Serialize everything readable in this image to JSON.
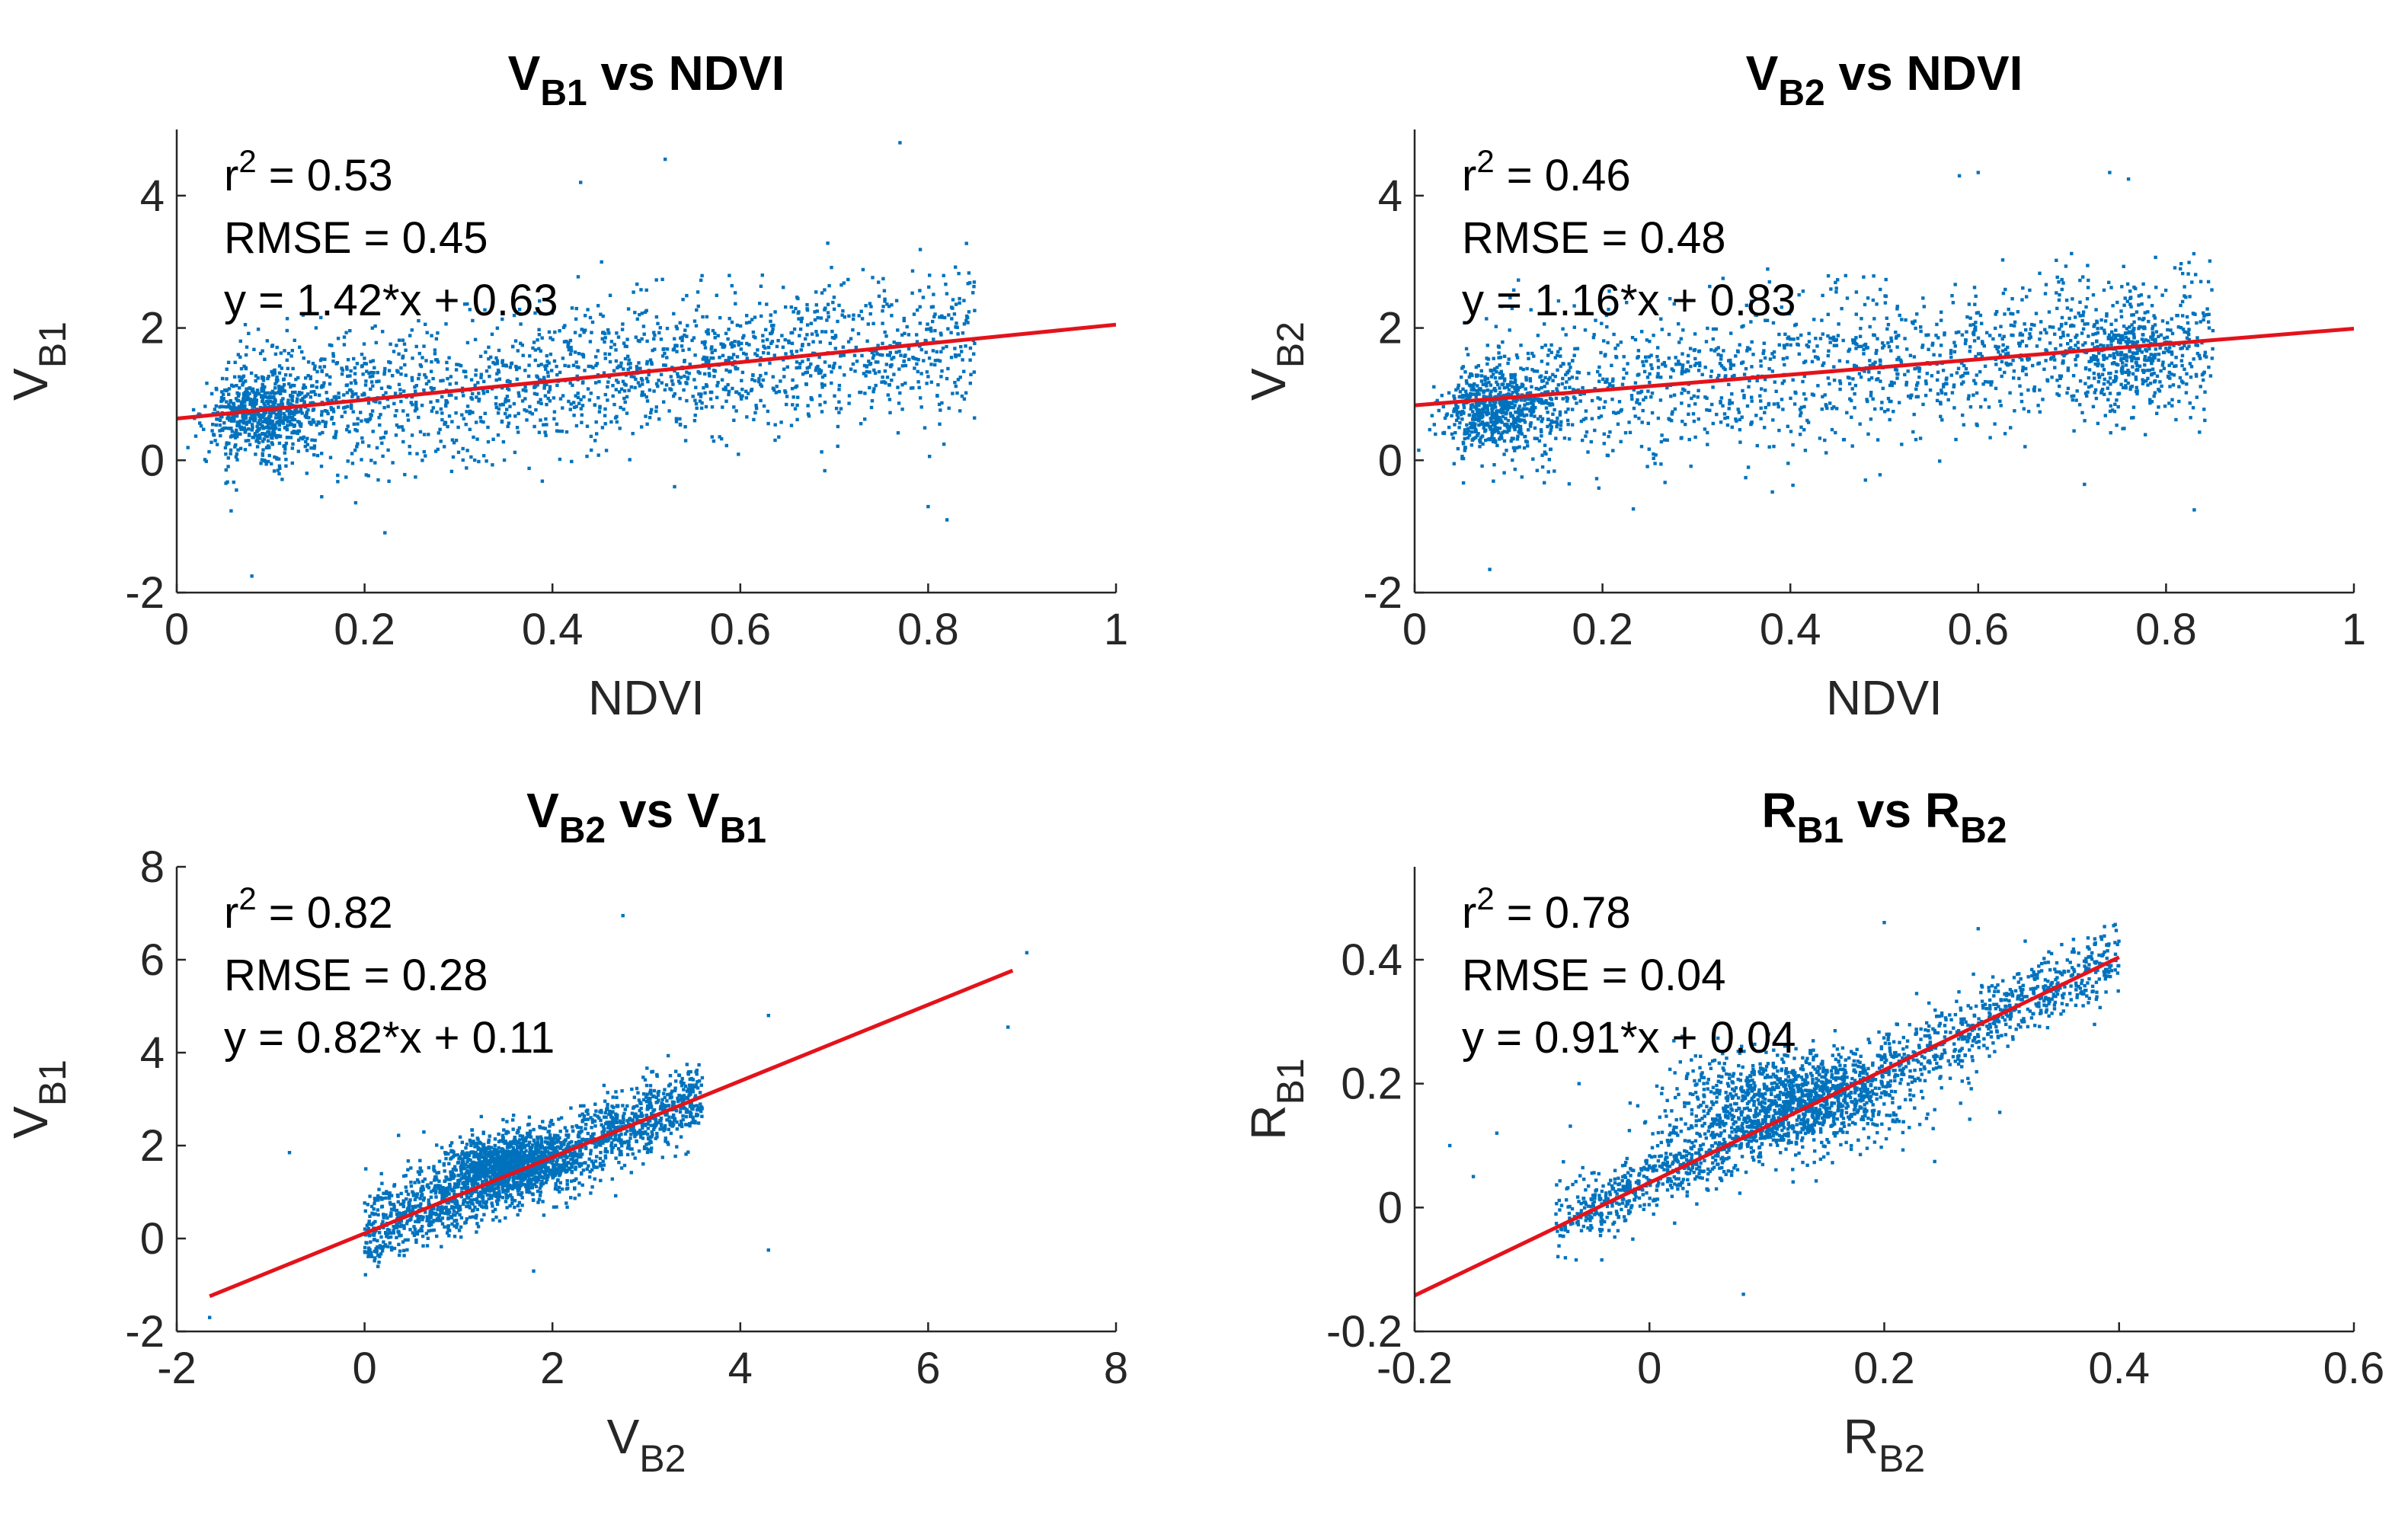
{
  "figure": {
    "description_colors": {
      "points": "#0072BD",
      "fit_line": "#E3131B",
      "axis": "#262626"
    }
  },
  "chart_data": [
    {
      "id": "panel-vb1-ndvi",
      "type": "scatter",
      "title": {
        "main": "V",
        "sub": "B1",
        "rest": " vs NDVI"
      },
      "xlabel": {
        "main": "NDVI",
        "sub": ""
      },
      "ylabel": {
        "main": "V",
        "sub": "B1"
      },
      "xlim": [
        0,
        1
      ],
      "ylim": [
        -2,
        5
      ],
      "xticks": [
        0,
        0.2,
        0.4,
        0.6,
        0.8,
        1
      ],
      "xtick_labels": [
        "0",
        "0.2",
        "0.4",
        "0.6",
        "0.8",
        "1"
      ],
      "yticks": [
        -2,
        0,
        2,
        4
      ],
      "ytick_labels": [
        "-2",
        "0",
        "2",
        "4"
      ],
      "annotations": {
        "r2_label": "r",
        "r2_sup": "2",
        "r2_value": " = 0.53",
        "rmse": "RMSE = 0.45",
        "equation": "y = 1.42*x + 0.63"
      },
      "fit": {
        "slope": 1.42,
        "intercept": 0.63,
        "x_range": [
          0,
          1
        ]
      },
      "scatter": {
        "n": 2400,
        "x_min": 0.05,
        "x_max": 0.85,
        "clusters": [
          [
            0.09,
            0.7,
            0.03,
            0.25,
            0.22
          ]
        ],
        "noise_sd": 0.55,
        "outliers": [
          [
            0.52,
            4.55
          ],
          [
            0.43,
            4.2
          ],
          [
            0.77,
            4.8
          ],
          [
            0.08,
            -1.75
          ],
          [
            0.82,
            -0.9
          ],
          [
            0.8,
            -0.7
          ],
          [
            0.53,
            -0.4
          ]
        ]
      }
    },
    {
      "id": "panel-vb2-ndvi",
      "type": "scatter",
      "title": {
        "main": "V",
        "sub": "B2",
        "rest": " vs NDVI"
      },
      "xlabel": {
        "main": "NDVI",
        "sub": ""
      },
      "ylabel": {
        "main": "V",
        "sub": "B2"
      },
      "xlim": [
        0,
        1
      ],
      "ylim": [
        -2,
        5
      ],
      "xticks": [
        0,
        0.2,
        0.4,
        0.6,
        0.8,
        1
      ],
      "xtick_labels": [
        "0",
        "0.2",
        "0.4",
        "0.6",
        "0.8",
        "1"
      ],
      "yticks": [
        -2,
        0,
        2,
        4
      ],
      "ytick_labels": [
        "-2",
        "0",
        "2",
        "4"
      ],
      "annotations": {
        "r2_label": "r",
        "r2_sup": "2",
        "r2_value": " = 0.46",
        "rmse": "RMSE = 0.48",
        "equation": "y = 1.16*x + 0.83"
      },
      "fit": {
        "slope": 1.16,
        "intercept": 0.83,
        "x_range": [
          0,
          1
        ]
      },
      "scatter": {
        "n": 2400,
        "x_min": 0.05,
        "x_max": 0.85,
        "clusters": [
          [
            0.09,
            0.75,
            0.03,
            0.3,
            0.22
          ],
          [
            0.76,
            1.6,
            0.03,
            0.3,
            0.12
          ]
        ],
        "noise_sd": 0.6,
        "outliers": [
          [
            0.58,
            4.3
          ],
          [
            0.6,
            4.35
          ],
          [
            0.74,
            4.35
          ],
          [
            0.76,
            4.25
          ],
          [
            0.08,
            -1.65
          ],
          [
            0.83,
            -0.75
          ],
          [
            0.48,
            -0.3
          ]
        ]
      }
    },
    {
      "id": "panel-vb2-vb1",
      "type": "scatter",
      "title": {
        "main": "V",
        "sub": "B2",
        "rest": " vs ",
        "main2": "V",
        "sub2": "B1"
      },
      "xlabel": {
        "main": "V",
        "sub": "B2"
      },
      "ylabel": {
        "main": "V",
        "sub": "B1"
      },
      "xlim": [
        -2,
        8
      ],
      "ylim": [
        -2,
        8
      ],
      "xticks": [
        -2,
        0,
        2,
        4,
        6,
        8
      ],
      "xtick_labels": [
        "-2",
        "0",
        "2",
        "4",
        "6",
        "8"
      ],
      "yticks": [
        -2,
        0,
        2,
        4,
        6,
        8
      ],
      "ytick_labels": [
        "-2",
        "0",
        "2",
        "4",
        "6",
        "8"
      ],
      "annotations": {
        "r2_label": "r",
        "r2_sup": "2",
        "r2_value": " = 0.82",
        "rmse": "RMSE = 0.28",
        "equation": "y = 0.82*x + 0.11"
      },
      "fit": {
        "slope": 0.82,
        "intercept": 0.11,
        "x_range": [
          -1.65,
          6.9
        ]
      },
      "scatter": {
        "n": 2600,
        "x_min": 0.0,
        "x_max": 3.6,
        "clusters": [
          [
            1.5,
            1.6,
            0.35,
            0.35,
            0.35
          ]
        ],
        "noise_sd": 0.4,
        "outliers": [
          [
            2.75,
            6.95
          ],
          [
            7.05,
            6.15
          ],
          [
            6.85,
            4.55
          ],
          [
            4.3,
            4.8
          ],
          [
            -0.8,
            1.85
          ],
          [
            -1.65,
            -1.7
          ],
          [
            4.3,
            -0.25
          ],
          [
            1.8,
            -0.7
          ]
        ]
      }
    },
    {
      "id": "panel-rb1-rb2",
      "type": "scatter",
      "title": {
        "main": "R",
        "sub": "B1",
        "rest": " vs ",
        "main2": "R",
        "sub2": "B2"
      },
      "xlabel": {
        "main": "R",
        "sub": "B2"
      },
      "ylabel": {
        "main": "R",
        "sub": "B1"
      },
      "xlim": [
        -0.2,
        0.6
      ],
      "ylim": [
        -0.2,
        0.55
      ],
      "xticks": [
        -0.2,
        0,
        0.2,
        0.4,
        0.6
      ],
      "xtick_labels": [
        "-0.2",
        "0",
        "0.2",
        "0.4",
        "0.6"
      ],
      "yticks": [
        -0.2,
        0,
        0.2,
        0.4
      ],
      "ytick_labels": [
        "-0.2",
        "0",
        "0.2",
        "0.4"
      ],
      "annotations": {
        "r2_label": "r",
        "r2_sup": "2",
        "r2_value": " = 0.78",
        "rmse": "RMSE = 0.04",
        "equation": "y = 0.91*x + 0.04"
      },
      "fit": {
        "slope": 0.91,
        "intercept": 0.04,
        "x_range": [
          -0.2,
          0.4
        ]
      },
      "scatter": {
        "n": 2600,
        "x_min": -0.08,
        "x_max": 0.4,
        "clusters": [
          [
            0.12,
            0.17,
            0.05,
            0.04,
            0.4
          ]
        ],
        "noise_sd": 0.03,
        "outliers": [
          [
            0.2,
            0.46
          ],
          [
            0.28,
            0.45
          ],
          [
            0.32,
            0.43
          ],
          [
            -0.17,
            0.1
          ],
          [
            -0.15,
            0.05
          ],
          [
            -0.13,
            0.12
          ],
          [
            -0.06,
            0.2
          ],
          [
            0.08,
            -0.14
          ]
        ]
      }
    }
  ]
}
